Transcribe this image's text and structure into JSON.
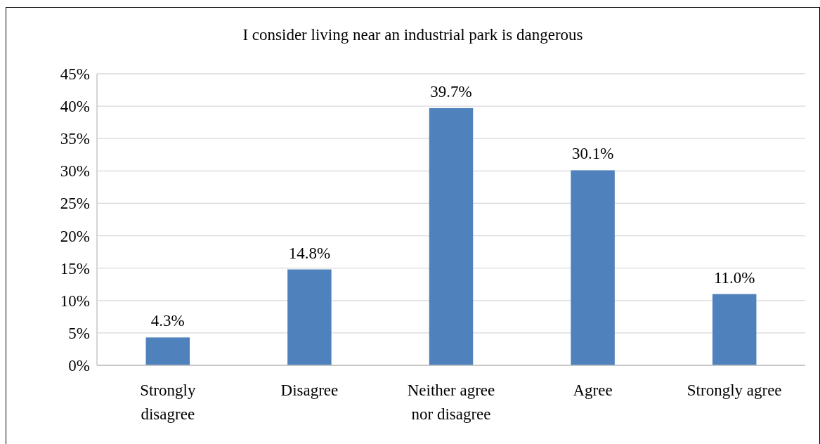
{
  "chart_data": {
    "type": "bar",
    "title": "I consider living near an industrial park is dangerous",
    "categories": [
      "Strongly disagree",
      "Disagree",
      "Neither agree nor disagree",
      "Agree",
      "Strongly agree"
    ],
    "values": [
      4.3,
      14.8,
      39.7,
      30.1,
      11.0
    ],
    "value_labels": [
      "4.3%",
      "14.8%",
      "39.7%",
      "30.1%",
      "11.0%"
    ],
    "color": "#4f81bd",
    "ylim": [
      0,
      45
    ],
    "yticks": [
      {
        "value": 0,
        "label": "0%"
      },
      {
        "value": 5,
        "label": "5%"
      },
      {
        "value": 10,
        "label": "10%"
      },
      {
        "value": 15,
        "label": "15%"
      },
      {
        "value": 20,
        "label": "20%"
      },
      {
        "value": 25,
        "label": "25%"
      },
      {
        "value": 30,
        "label": "30%"
      },
      {
        "value": 35,
        "label": "35%"
      },
      {
        "value": 40,
        "label": "40%"
      },
      {
        "value": 45,
        "label": "45%"
      }
    ],
    "grid": "y"
  }
}
